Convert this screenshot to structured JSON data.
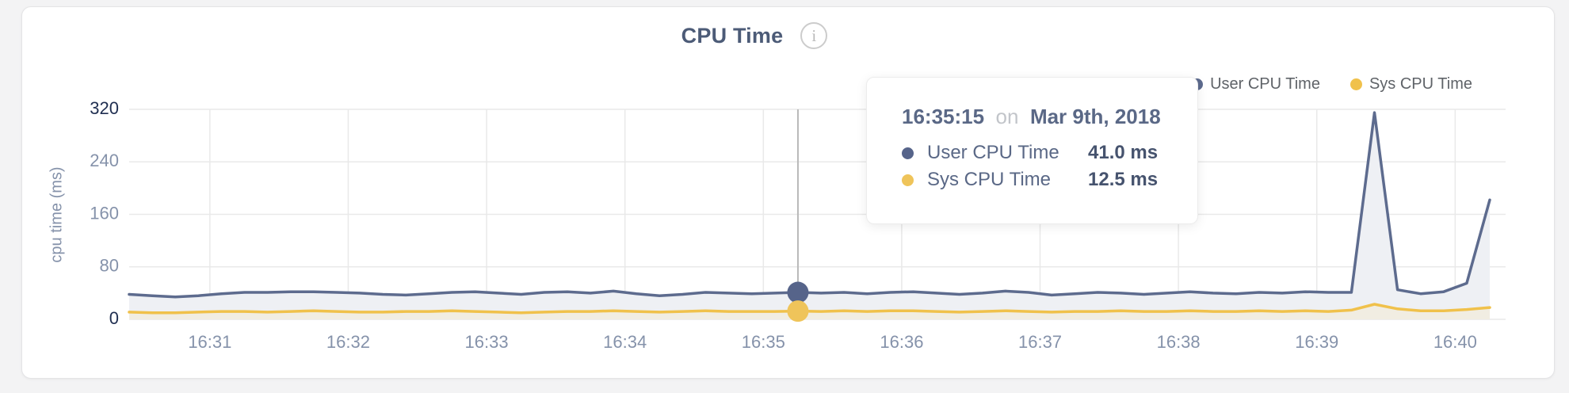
{
  "header": {
    "title": "CPU Time",
    "info_icon_glyph": "i"
  },
  "legend": {
    "items": [
      {
        "label": "User CPU Time",
        "color": "#5d6b8e"
      },
      {
        "label": "Sys CPU Time",
        "color": "#f0c14b"
      }
    ]
  },
  "tooltip": {
    "time": "16:35:15",
    "connector": "on",
    "date": "Mar 9th, 2018",
    "rows": [
      {
        "label": "User CPU Time",
        "value": "41.0 ms",
        "color": "#56648a"
      },
      {
        "label": "Sys CPU Time",
        "value": "12.5 ms",
        "color": "#efc45a"
      }
    ]
  },
  "axes": {
    "y_title": "cpu time (ms)"
  },
  "colors": {
    "user_line": "#5d6b8e",
    "user_fill": "#eef0f4",
    "sys_line": "#f0c14b",
    "sys_fill": "#f1ede2",
    "grid": "#e9e9e9",
    "crosshair": "#b9b9b9",
    "tick_light": "#8592aa",
    "tick_dark": "#1f2e50",
    "x_tick": "#8592aa"
  },
  "chart_data": {
    "type": "area",
    "title": "CPU Time",
    "xlabel": "",
    "ylabel": "cpu time (ms)",
    "ylim": [
      0,
      320
    ],
    "yticks": [
      0,
      80,
      160,
      240,
      320
    ],
    "yticks_dark": [
      0,
      320
    ],
    "xticks": [
      "16:31",
      "16:32",
      "16:33",
      "16:34",
      "16:35",
      "16:36",
      "16:37",
      "16:38",
      "16:39",
      "16:40"
    ],
    "grid": true,
    "legend_position": "top-right",
    "x": [
      "16:30:25",
      "16:30:35",
      "16:30:45",
      "16:30:55",
      "16:31:05",
      "16:31:15",
      "16:31:25",
      "16:31:35",
      "16:31:45",
      "16:31:55",
      "16:32:05",
      "16:32:15",
      "16:32:25",
      "16:32:35",
      "16:32:45",
      "16:32:55",
      "16:33:05",
      "16:33:15",
      "16:33:25",
      "16:33:35",
      "16:33:45",
      "16:33:55",
      "16:34:05",
      "16:34:15",
      "16:34:25",
      "16:34:35",
      "16:34:45",
      "16:34:55",
      "16:35:05",
      "16:35:15",
      "16:35:25",
      "16:35:35",
      "16:35:45",
      "16:35:55",
      "16:36:05",
      "16:36:15",
      "16:36:25",
      "16:36:35",
      "16:36:45",
      "16:36:55",
      "16:37:05",
      "16:37:15",
      "16:37:25",
      "16:37:35",
      "16:37:45",
      "16:37:55",
      "16:38:05",
      "16:38:15",
      "16:38:25",
      "16:38:35",
      "16:38:45",
      "16:38:55",
      "16:39:05",
      "16:39:15",
      "16:39:25",
      "16:39:35",
      "16:39:45",
      "16:39:55",
      "16:40:05",
      "16:40:15"
    ],
    "series": [
      {
        "name": "User CPU Time",
        "color": "#5d6b8e",
        "fill": "#eef0f4",
        "values": [
          38,
          36,
          34,
          36,
          39,
          41,
          41,
          42,
          42,
          41,
          40,
          38,
          37,
          39,
          41,
          42,
          40,
          38,
          41,
          42,
          40,
          43,
          39,
          36,
          38,
          41,
          40,
          39,
          40,
          41,
          40,
          41,
          39,
          41,
          42,
          40,
          38,
          40,
          43,
          41,
          37,
          39,
          41,
          40,
          38,
          40,
          42,
          40,
          39,
          41,
          40,
          42,
          41,
          41,
          315,
          45,
          39,
          42,
          55,
          182
        ]
      },
      {
        "name": "Sys CPU Time",
        "color": "#f0c14b",
        "fill": "#f1ede2",
        "values": [
          11,
          10,
          10,
          11,
          12,
          12,
          11,
          12,
          13,
          12,
          11,
          11,
          12,
          12,
          13,
          12,
          11,
          10,
          11,
          12,
          12,
          13,
          12,
          11,
          12,
          13,
          12,
          12,
          12,
          12.5,
          12,
          13,
          12,
          13,
          13,
          12,
          11,
          12,
          13,
          12,
          11,
          12,
          12,
          13,
          12,
          12,
          13,
          12,
          12,
          13,
          12,
          13,
          12,
          14,
          23,
          16,
          13,
          13,
          15,
          18
        ]
      }
    ],
    "selected_point": {
      "index": 29,
      "time": "16:35:15",
      "user_value": 41.0,
      "sys_value": 12.5
    }
  }
}
